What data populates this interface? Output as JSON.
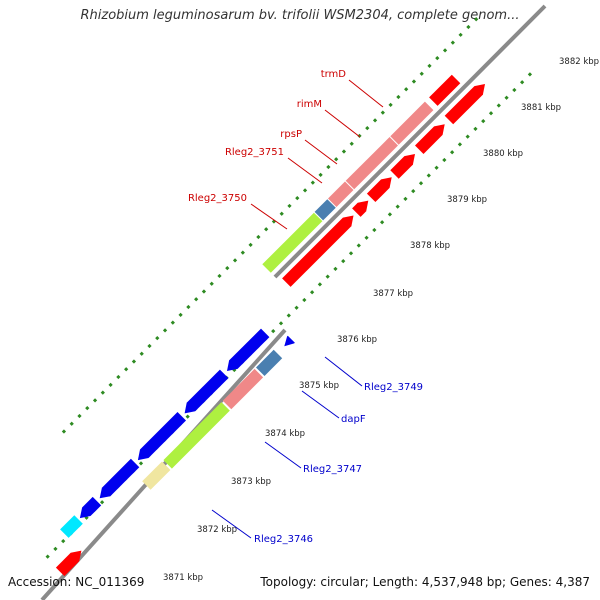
{
  "title": "Rhizobium leguminosarum bv. trifolii WSM2304, complete genom...",
  "footer": {
    "accession": "Accession: NC_011369",
    "topology": "Topology: circular; Length: 4,537,948 bp; Genes: 4,387"
  },
  "colors": {
    "backbone": "#8a8a8a",
    "tick_dot": "#2e8b22",
    "reverse_label": "#cc0000",
    "forward_label": "#0000cc",
    "gene_red": "#ff0000",
    "gene_pink": "#f08888",
    "gene_blue": "#0000ee",
    "gene_steel": "#4a7fb0",
    "gene_green": "#aef040",
    "gene_cyan": "#00e8ff",
    "gene_khaki": "#f0e6a0"
  },
  "kbp_labels": [
    "3871 kbp",
    "3872 kbp",
    "3873 kbp",
    "3874 kbp",
    "3875 kbp",
    "3876 kbp",
    "3877 kbp",
    "3878 kbp",
    "3879 kbp",
    "3880 kbp",
    "3881 kbp",
    "3882 kbp"
  ],
  "gene_labels": {
    "reverse": [
      "trmD",
      "rimM",
      "rpsP",
      "Rleg2_3751",
      "Rleg2_3750"
    ],
    "forward": [
      "Rleg2_3749",
      "dapF",
      "Rleg2_3747",
      "Rleg2_3746"
    ]
  }
}
